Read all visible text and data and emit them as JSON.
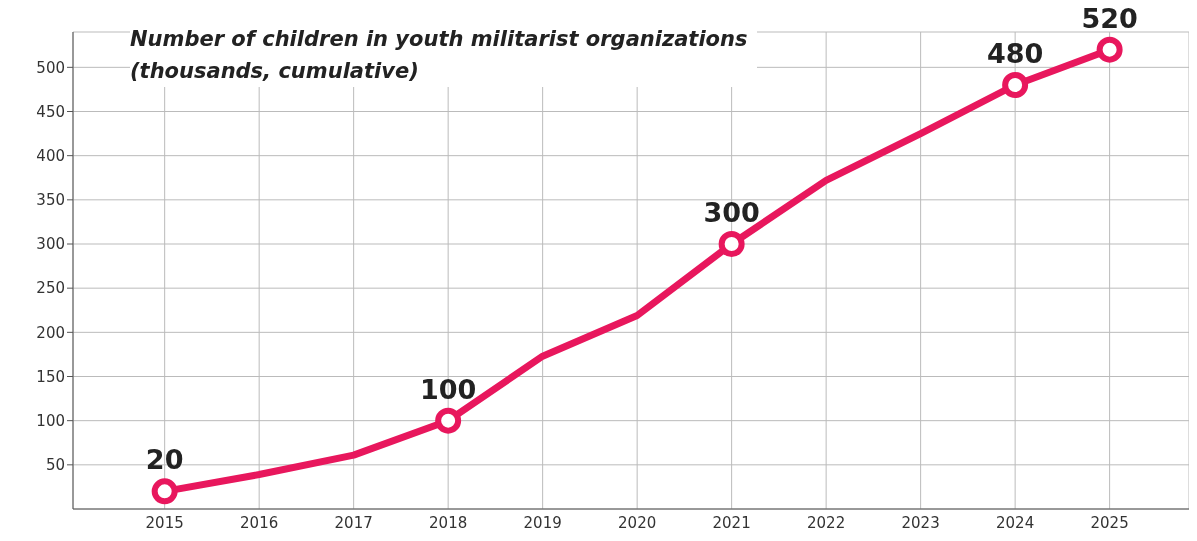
{
  "chart_data": {
    "type": "line",
    "title": "Number of children in youth militarist organizations\n(thousands, cumulative)",
    "x": [
      2015,
      2016,
      2017,
      2018,
      2019,
      2020,
      2021,
      2022,
      2023,
      2024,
      2025
    ],
    "series": [
      {
        "color": "#e8175d",
        "values": [
          20,
          39,
          61,
          100,
          173,
          219,
          300,
          372,
          425,
          480,
          520
        ],
        "marker": "none"
      },
      {
        "type": "scatter",
        "color": "#e8175d",
        "x": [
          2015,
          2018,
          2021,
          2024,
          2025
        ],
        "values": [
          20,
          100,
          300,
          480,
          520
        ],
        "value_labels": [
          "20",
          "100",
          "300",
          "480",
          "520"
        ],
        "marker": "circle"
      }
    ],
    "xlim": [
      2014.03,
      2025.84
    ],
    "xticks": [
      2015,
      2016,
      2017,
      2018,
      2019,
      2020,
      2021,
      2022,
      2023,
      2024,
      2025
    ],
    "ylim": [
      0,
      540
    ],
    "yticks": [
      50,
      100,
      150,
      200,
      250,
      300,
      350,
      400,
      450,
      500
    ],
    "grid": true,
    "line_style": "solid"
  }
}
